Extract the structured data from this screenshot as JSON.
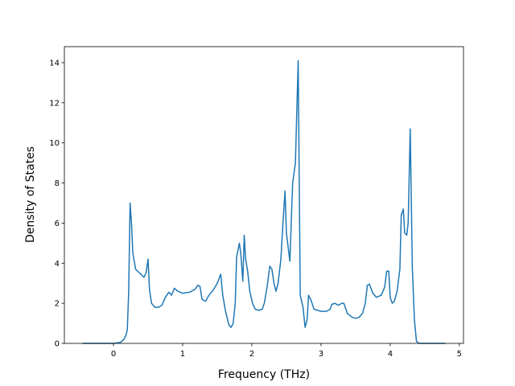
{
  "chart_data": {
    "type": "line",
    "xlabel": "Frequency (THz)",
    "ylabel": "Density of States",
    "x": [
      -0.45,
      0,
      0.1,
      0.15,
      0.18,
      0.2,
      0.22,
      0.24,
      0.26,
      0.28,
      0.32,
      0.38,
      0.44,
      0.47,
      0.5,
      0.52,
      0.55,
      0.6,
      0.65,
      0.7,
      0.75,
      0.8,
      0.84,
      0.88,
      0.93,
      1.0,
      1.1,
      1.18,
      1.22,
      1.25,
      1.28,
      1.33,
      1.38,
      1.45,
      1.5,
      1.55,
      1.58,
      1.62,
      1.67,
      1.7,
      1.73,
      1.76,
      1.78,
      1.82,
      1.84,
      1.87,
      1.89,
      1.91,
      1.94,
      1.97,
      2.01,
      2.05,
      2.1,
      2.15,
      2.18,
      2.22,
      2.26,
      2.29,
      2.32,
      2.35,
      2.38,
      2.42,
      2.45,
      2.48,
      2.5,
      2.55,
      2.59,
      2.63,
      2.67,
      2.7,
      2.74,
      2.77,
      2.8,
      2.82,
      2.85,
      2.9,
      3.0,
      3.08,
      3.13,
      3.16,
      3.2,
      3.25,
      3.3,
      3.33,
      3.38,
      3.45,
      3.5,
      3.55,
      3.6,
      3.64,
      3.67,
      3.7,
      3.75,
      3.8,
      3.87,
      3.92,
      3.95,
      3.98,
      4.0,
      4.03,
      4.06,
      4.1,
      4.14,
      4.16,
      4.19,
      4.21,
      4.24,
      4.26,
      4.29,
      4.32,
      4.35,
      4.38,
      4.42,
      4.8
    ],
    "series": [
      {
        "color": "#1f77b4",
        "values": [
          0,
          0,
          0.05,
          0.2,
          0.4,
          0.7,
          2.6,
          7.0,
          6.0,
          4.5,
          3.7,
          3.5,
          3.3,
          3.5,
          4.2,
          2.7,
          2.0,
          1.8,
          1.8,
          1.9,
          2.3,
          2.55,
          2.4,
          2.75,
          2.6,
          2.5,
          2.55,
          2.7,
          2.9,
          2.85,
          2.2,
          2.1,
          2.4,
          2.7,
          3.0,
          3.45,
          2.4,
          1.6,
          0.9,
          0.8,
          1.0,
          2.0,
          4.3,
          5.0,
          4.5,
          3.1,
          5.4,
          4.2,
          3.6,
          2.6,
          2.0,
          1.7,
          1.65,
          1.7,
          2.0,
          2.8,
          3.85,
          3.7,
          3.0,
          2.6,
          3.0,
          4.2,
          6.0,
          7.6,
          5.5,
          4.1,
          8.0,
          9.0,
          14.1,
          2.4,
          1.8,
          0.8,
          1.2,
          2.4,
          2.2,
          1.7,
          1.6,
          1.6,
          1.7,
          1.95,
          2.0,
          1.9,
          2.0,
          2.0,
          1.5,
          1.3,
          1.25,
          1.3,
          1.5,
          2.0,
          2.9,
          2.95,
          2.5,
          2.3,
          2.4,
          2.8,
          3.6,
          3.6,
          2.3,
          2.0,
          2.1,
          2.6,
          3.7,
          6.4,
          6.7,
          5.5,
          5.4,
          6.0,
          10.7,
          3.8,
          1.2,
          0.1,
          0,
          0
        ]
      }
    ],
    "xlim": [
      -0.71,
      5.06
    ],
    "ylim": [
      0,
      14.8
    ],
    "xticks": [
      0,
      1,
      2,
      3,
      4,
      5
    ],
    "yticks": [
      0,
      2,
      4,
      6,
      8,
      10,
      12,
      14
    ],
    "grid": false
  }
}
